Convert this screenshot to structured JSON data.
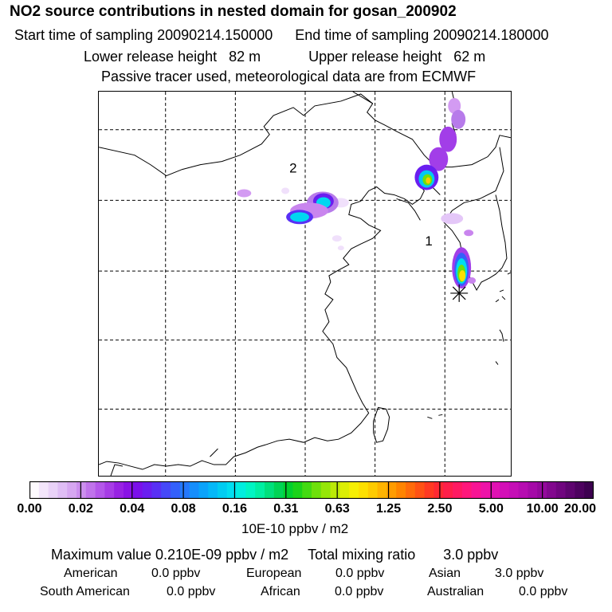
{
  "header": {
    "title": "NO2 source contributions in nested domain for gosan_200902",
    "start_sampling": "Start time of sampling 20090214.150000",
    "end_sampling": "End time of sampling 20090214.180000",
    "lower_release": "Lower release height   82 m",
    "upper_release": "Upper release height   62 m",
    "tracer_note": "Passive tracer used, meteorological data are from ECMWF"
  },
  "map": {
    "source_labels": [
      "1",
      "2"
    ]
  },
  "colorbar": {
    "tick_labels": [
      "0.00",
      "0.02",
      "0.04",
      "0.08",
      "0.16",
      "0.31",
      "0.63",
      "1.25",
      "2.50",
      "5.00",
      "10.00",
      "20.00"
    ],
    "units": "10E-10 ppbv / m2",
    "colors": [
      "#fdfafe",
      "#f3e5fb",
      "#e9d2f8",
      "#dfbdf5",
      "#d6a7f1",
      "#cc8fee",
      "#c073eb",
      "#b457ea",
      "#a73ce6",
      "#9822e3",
      "#8a12e5",
      "#7b10ea",
      "#6a1ef0",
      "#5930f5",
      "#4648f8",
      "#3460fb",
      "#2478fc",
      "#158efc",
      "#0aa3fb",
      "#04b8f8",
      "#00ccf2",
      "#00def0",
      "#00eedf",
      "#00f5c3",
      "#00efa2",
      "#00e07c",
      "#00d455",
      "#00d02e",
      "#1bd31a",
      "#43da12",
      "#6ee00c",
      "#95e608",
      "#bbea06",
      "#dcee05",
      "#f6ef03",
      "#fde000",
      "#fecb00",
      "#ffb400",
      "#ff9c00",
      "#ff8400",
      "#ff6b0a",
      "#ff5214",
      "#ff3a22",
      "#ff2933",
      "#ff1f4a",
      "#ff1a62",
      "#ff177b",
      "#f81494",
      "#ee13a8",
      "#e111b3",
      "#d30fb7",
      "#c50eb6",
      "#b60cb1",
      "#a50aa8",
      "#94099c",
      "#82078e",
      "#70057f",
      "#5e046f",
      "#4d025f",
      "#3d0150"
    ]
  },
  "summary": {
    "max_value": "Maximum value  0.210E-09 ppbv / m2",
    "total_mixing": "Total mixing ratio       3.0 ppbv",
    "american_label": "American",
    "american_value": "0.0 ppbv",
    "european_label": "European",
    "european_value": "0.0 ppbv",
    "asian_label": "Asian",
    "asian_value": "3.0 ppbv",
    "south_american_label": "South American",
    "south_american_value": "0.0 ppbv",
    "african_label": "African",
    "african_value": "0.0 ppbv",
    "australian_label": "Australian",
    "australian_value": "0.0 ppbv"
  }
}
